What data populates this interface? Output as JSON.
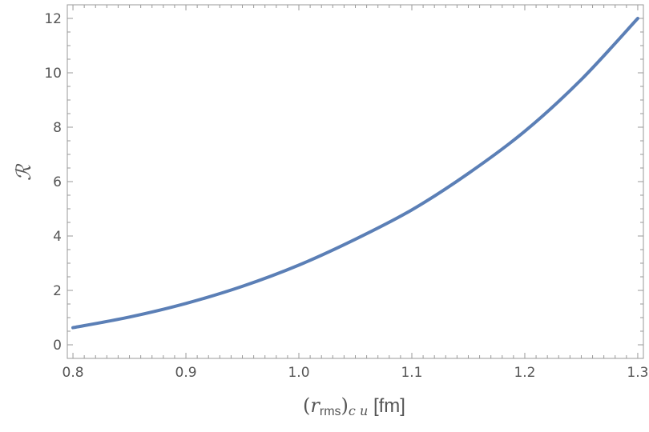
{
  "chart_data": {
    "type": "line",
    "title": "",
    "xlabel": {
      "prefix": "(",
      "variable": "r",
      "subscript": "rms",
      "suffix": ")",
      "outer_subscript": "c u",
      "unit": " [fm]"
    },
    "ylabel": "ℛ",
    "xlim": [
      0.795,
      1.305
    ],
    "ylim": [
      -0.5,
      12.5
    ],
    "xticks": [
      "0.8",
      "0.9",
      "1.0",
      "1.1",
      "1.2",
      "1.3"
    ],
    "yticks": [
      "0",
      "2",
      "4",
      "6",
      "8",
      "10",
      "12"
    ],
    "grid": false,
    "frame": true,
    "series": [
      {
        "color": "#5b7fb6",
        "points": [
          [
            0.8,
            0.63
          ],
          [
            0.85,
            1.02
          ],
          [
            0.9,
            1.52
          ],
          [
            0.95,
            2.15
          ],
          [
            1.0,
            2.93
          ],
          [
            1.05,
            3.88
          ],
          [
            1.1,
            4.96
          ],
          [
            1.15,
            6.3
          ],
          [
            1.2,
            7.85
          ],
          [
            1.25,
            9.75
          ],
          [
            1.3,
            12.0
          ]
        ]
      }
    ]
  }
}
